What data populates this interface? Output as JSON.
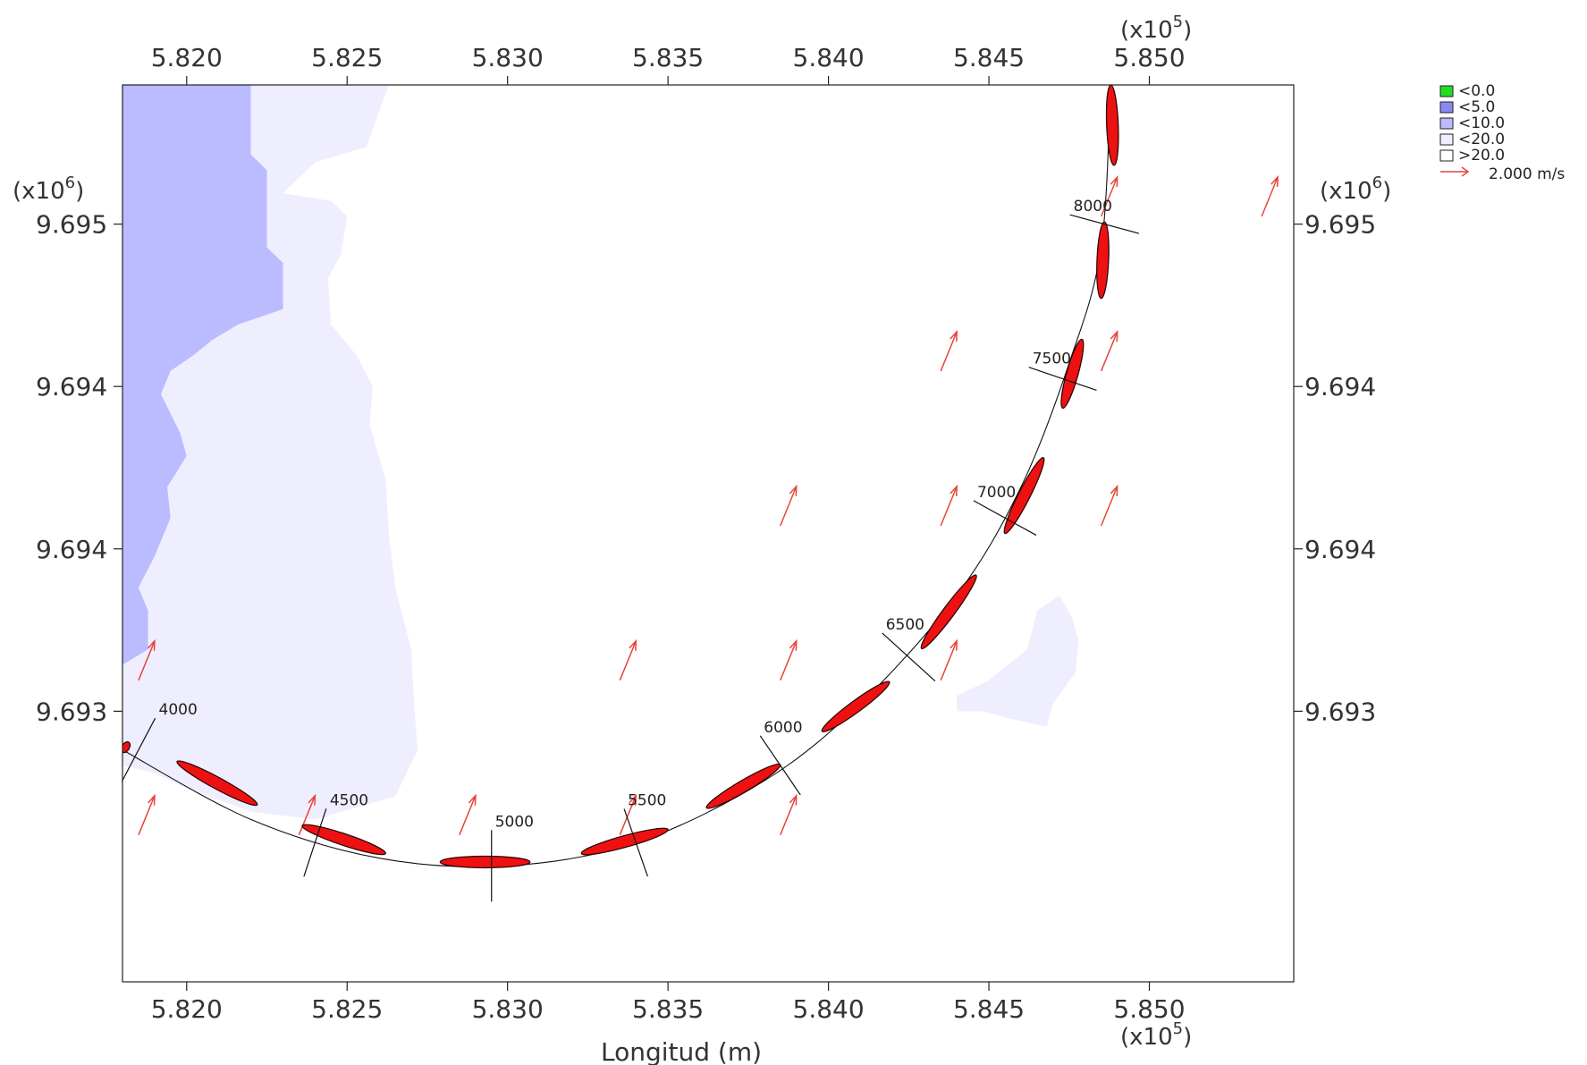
{
  "chart_data": {
    "type": "map",
    "xlabel": "Longitud (m)",
    "x_multiplier": "(x10",
    "x_multiplier_exp": "5",
    "y_multiplier": "(x10",
    "y_multiplier_exp": "6",
    "xlim": [
      581.8,
      585.45
    ],
    "ylim": [
      9692.25,
      9693.41
    ],
    "x_ticks": [
      {
        "value": 582.0,
        "label": "5.820"
      },
      {
        "value": 582.5,
        "label": "5.825"
      },
      {
        "value": 583.0,
        "label": "5.830"
      },
      {
        "value": 583.5,
        "label": "5.835"
      },
      {
        "value": 584.0,
        "label": "5.840"
      },
      {
        "value": 584.5,
        "label": "5.845"
      },
      {
        "value": 585.0,
        "label": "5.850"
      }
    ],
    "y_ticks": [
      {
        "value": 9693.23,
        "label": "9.695"
      },
      {
        "value": 9693.02,
        "label": "9.694"
      },
      {
        "value": 9692.81,
        "label": "9.694"
      },
      {
        "value": 9692.6,
        "label": "9.693"
      }
    ],
    "legend": [
      {
        "label": "<0.0",
        "color": "#22dd22"
      },
      {
        "label": "<5.0",
        "color": "#8888f0"
      },
      {
        "label": "<10.0",
        "color": "#bbbbff"
      },
      {
        "label": "<20.0",
        "color": "#eeeeff"
      },
      {
        "label": ">20.0",
        "color": "#ffffff"
      }
    ],
    "vector_legend_label": "2.000 m/s",
    "vector_color": "#e8443a",
    "vessel_color": "#ee1111",
    "track_points": [
      [
        581.8,
        9692.55
      ],
      [
        582.2,
        9692.46
      ],
      [
        582.6,
        9692.41
      ],
      [
        583.0,
        9692.4
      ],
      [
        583.4,
        9692.43
      ],
      [
        583.8,
        9692.51
      ],
      [
        584.1,
        9692.61
      ],
      [
        584.4,
        9692.75
      ],
      [
        584.6,
        9692.89
      ],
      [
        584.75,
        9693.05
      ],
      [
        584.85,
        9693.2
      ],
      [
        584.88,
        9693.42
      ]
    ],
    "chainages": [
      {
        "label": "4000",
        "x": 581.85,
        "y": 9692.55
      },
      {
        "label": "4500",
        "x": 582.4,
        "y": 9692.43
      },
      {
        "label": "5000",
        "x": 582.95,
        "y": 9692.4
      },
      {
        "label": "5500",
        "x": 583.4,
        "y": 9692.43
      },
      {
        "label": "6000",
        "x": 583.85,
        "y": 9692.53
      },
      {
        "label": "6500",
        "x": 584.25,
        "y": 9692.67
      },
      {
        "label": "7000",
        "x": 584.55,
        "y": 9692.85
      },
      {
        "label": "7500",
        "x": 584.73,
        "y": 9693.03
      },
      {
        "label": "8000",
        "x": 584.86,
        "y": 9693.23
      }
    ],
    "vessels": [
      {
        "x1": 581.8,
        "y1": 9692.556,
        "x2": 581.82,
        "y2": 9692.551
      },
      {
        "x1": 581.97,
        "y1": 9692.535,
        "x2": 582.22,
        "y2": 9692.479
      },
      {
        "x1": 582.36,
        "y1": 9692.452,
        "x2": 582.62,
        "y2": 9692.416
      },
      {
        "x1": 582.79,
        "y1": 9692.405,
        "x2": 583.07,
        "y2": 9692.405
      },
      {
        "x1": 583.23,
        "y1": 9692.416,
        "x2": 583.5,
        "y2": 9692.447
      },
      {
        "x1": 583.62,
        "y1": 9692.475,
        "x2": 583.85,
        "y2": 9692.531
      },
      {
        "x1": 583.98,
        "y1": 9692.574,
        "x2": 584.19,
        "y2": 9692.638
      },
      {
        "x1": 584.29,
        "y1": 9692.681,
        "x2": 584.46,
        "y2": 9692.776
      },
      {
        "x1": 584.55,
        "y1": 9692.83,
        "x2": 584.67,
        "y2": 9692.928
      },
      {
        "x1": 584.73,
        "y1": 9692.992,
        "x2": 584.79,
        "y2": 9693.081
      },
      {
        "x1": 584.85,
        "y1": 9693.134,
        "x2": 584.86,
        "y2": 9693.233
      },
      {
        "x1": 584.89,
        "y1": 9693.306,
        "x2": 584.88,
        "y2": 9693.41
      }
    ],
    "vectors": [
      [
        581.85,
        9692.64
      ],
      [
        582.35,
        9692.44
      ],
      [
        582.85,
        9692.44
      ],
      [
        583.35,
        9692.64
      ],
      [
        583.35,
        9692.44
      ],
      [
        583.85,
        9692.64
      ],
      [
        583.85,
        9692.44
      ],
      [
        583.85,
        9692.84
      ],
      [
        584.35,
        9692.64
      ],
      [
        584.35,
        9692.84
      ],
      [
        584.35,
        9693.04
      ],
      [
        584.85,
        9692.84
      ],
      [
        584.85,
        9693.04
      ],
      [
        584.85,
        9693.24
      ],
      [
        585.35,
        9693.24
      ],
      [
        581.85,
        9692.44
      ]
    ],
    "depth_regions": [
      {
        "class": "<5.0",
        "color": "#bbbbff",
        "points": [
          [
            581.8,
            9693.41
          ],
          [
            582.2,
            9693.41
          ],
          [
            582.2,
            9693.32
          ],
          [
            582.25,
            9693.3
          ],
          [
            582.25,
            9693.2
          ],
          [
            582.3,
            9693.18
          ],
          [
            582.3,
            9693.12
          ],
          [
            582.16,
            9693.1
          ],
          [
            582.08,
            9693.08
          ],
          [
            582.02,
            9693.06
          ],
          [
            581.95,
            9693.04
          ],
          [
            581.92,
            9693.01
          ],
          [
            581.98,
            9692.96
          ],
          [
            582.0,
            9692.93
          ],
          [
            581.94,
            9692.89
          ],
          [
            581.95,
            9692.85
          ],
          [
            581.9,
            9692.8
          ],
          [
            581.85,
            9692.76
          ],
          [
            581.88,
            9692.73
          ],
          [
            581.88,
            9692.68
          ],
          [
            581.8,
            9692.66
          ]
        ]
      },
      {
        "class": "<10.0",
        "color": "#eeeeff",
        "points": [
          [
            582.2,
            9693.41
          ],
          [
            582.63,
            9693.41
          ],
          [
            582.56,
            9693.33
          ],
          [
            582.4,
            9693.31
          ],
          [
            582.3,
            9693.27
          ],
          [
            582.45,
            9693.26
          ],
          [
            582.5,
            9693.24
          ],
          [
            582.48,
            9693.19
          ],
          [
            582.44,
            9693.16
          ],
          [
            582.45,
            9693.1
          ],
          [
            582.53,
            9693.06
          ],
          [
            582.58,
            9693.02
          ],
          [
            582.57,
            9692.97
          ],
          [
            582.62,
            9692.9
          ],
          [
            582.63,
            9692.83
          ],
          [
            582.65,
            9692.76
          ],
          [
            582.7,
            9692.68
          ],
          [
            582.71,
            9692.6
          ],
          [
            582.72,
            9692.55
          ],
          [
            582.65,
            9692.49
          ],
          [
            582.4,
            9692.46
          ],
          [
            582.2,
            9692.47
          ],
          [
            582.0,
            9692.5
          ],
          [
            581.9,
            9692.52
          ],
          [
            581.8,
            9692.53
          ],
          [
            581.8,
            9692.66
          ],
          [
            581.88,
            9692.68
          ],
          [
            581.88,
            9692.73
          ],
          [
            581.85,
            9692.76
          ],
          [
            581.9,
            9692.8
          ],
          [
            581.95,
            9692.85
          ],
          [
            581.94,
            9692.89
          ],
          [
            582.0,
            9692.93
          ],
          [
            581.98,
            9692.96
          ],
          [
            581.92,
            9693.01
          ],
          [
            581.95,
            9693.04
          ],
          [
            582.02,
            9693.06
          ],
          [
            582.08,
            9693.08
          ],
          [
            582.16,
            9693.1
          ],
          [
            582.3,
            9693.12
          ],
          [
            582.3,
            9693.18
          ],
          [
            582.25,
            9693.2
          ],
          [
            582.25,
            9693.3
          ],
          [
            582.2,
            9693.32
          ]
        ]
      },
      {
        "class": "<20.0",
        "color": "#eeeeff",
        "points": [
          [
            584.4,
            9692.62
          ],
          [
            584.5,
            9692.64
          ],
          [
            584.62,
            9692.68
          ],
          [
            584.65,
            9692.73
          ],
          [
            584.72,
            9692.75
          ],
          [
            584.76,
            9692.72
          ],
          [
            584.78,
            9692.69
          ],
          [
            584.77,
            9692.65
          ],
          [
            584.7,
            9692.61
          ],
          [
            584.68,
            9692.58
          ],
          [
            584.57,
            9692.59
          ],
          [
            584.48,
            9692.6
          ],
          [
            584.4,
            9692.6
          ]
        ]
      }
    ]
  }
}
